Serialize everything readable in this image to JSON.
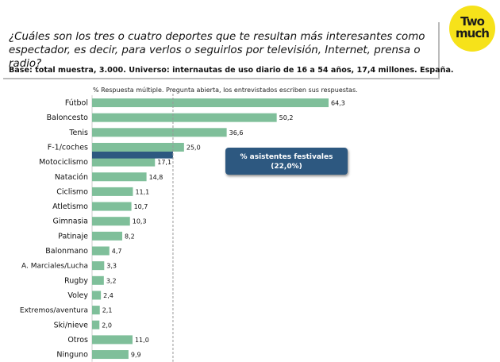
{
  "header": {
    "question": "¿Cuáles son los tres o cuatro deportes que te resultan más interesantes como espectador, es decir, para verlos o seguirlos por televisión, Internet, prensa o radio?",
    "base": "Base: total muestra, 3.000. Universo: internautas de uso diario de 16 a 54 años, 17,4 millones. España."
  },
  "logo": {
    "line1": "Two",
    "line2": "much",
    "color": "#f6e21a"
  },
  "chart_note": "% Respuesta múltiple. Pregunta abierta, los entrevistados escriben sus respuestas.",
  "reference": {
    "line1": "% asistentes festivales",
    "line2": "(22,0%)",
    "value": 22.0
  },
  "colors": {
    "bar": "#7fbf9a",
    "highlight": "#2d5880",
    "reference_line": "#999999"
  },
  "chart_data": {
    "type": "bar",
    "orientation": "horizontal",
    "categories": [
      "Fútbol",
      "Baloncesto",
      "Tenis",
      "F-1/coches",
      "Motociclismo",
      "Natación",
      "Ciclismo",
      "Atletismo",
      "Gimnasia",
      "Patinaje",
      "Balonmano",
      "A. Marciales/Lucha",
      "Rugby",
      "Voley",
      "Extremos/aventura",
      "Ski/nieve",
      "Otros",
      "Ninguno"
    ],
    "values": [
      64.3,
      50.2,
      36.6,
      25.0,
      17.1,
      14.8,
      11.1,
      10.7,
      10.3,
      8.2,
      4.7,
      3.3,
      3.2,
      2.4,
      2.1,
      2.0,
      11.0,
      9.9
    ],
    "value_labels": [
      "64,3",
      "50,2",
      "36,6",
      "25,0",
      "17,1",
      "14,8",
      "11,1",
      "10,7",
      "10,3",
      "8,2",
      "4,7",
      "3,3",
      "3,2",
      "2,4",
      "2,1",
      "2,0",
      "11,0",
      "9,9"
    ],
    "reference_value": 22.0,
    "xlim": [
      0,
      64.3
    ]
  }
}
